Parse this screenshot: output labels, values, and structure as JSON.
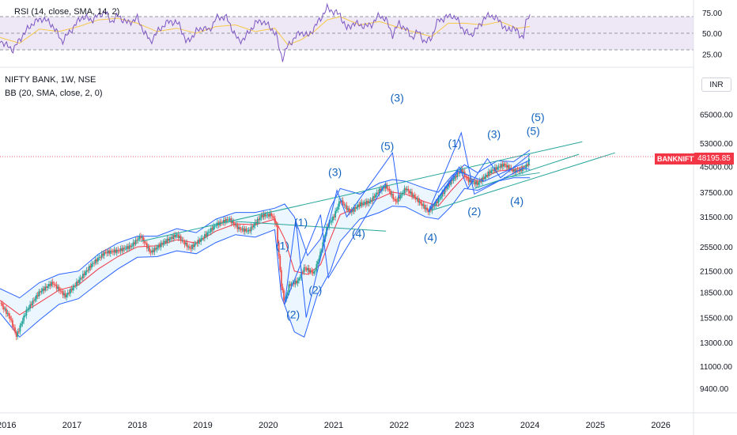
{
  "rsi_panel": {
    "label": "RSI (14, close, SMA, 14, 2)",
    "ticks": [
      {
        "value": 75,
        "label": "75.00"
      },
      {
        "value": 50,
        "label": "50.00"
      },
      {
        "value": 25,
        "label": "25.00"
      }
    ],
    "upper_band": 70,
    "lower_band": 30
  },
  "main_panel": {
    "symbol_label": "NIFTY BANK, 1W, NSE",
    "indicator_label": "BB (20, SMA, close, 2, 0)",
    "currency": "INR",
    "symbol_tag": "BANKNIFTY",
    "price_tag": "48195.85",
    "last_price": 48195.85
  },
  "colors": {
    "rsi_line": "#7e57c2",
    "rsi_ma": "#f7c948",
    "rsi_band_fill": "#ede7f6",
    "bb_band": "#2962ff",
    "bb_fill": "#e3f2fd",
    "bb_basis": "#f23645",
    "wave_line": "#2962ff",
    "channel_line": "#26a69a",
    "wave_label": "#1565c0",
    "candle_up": "#26a69a",
    "candle_down": "#ef5350",
    "price_tag": "#f23645"
  },
  "chart_data": {
    "type": "candlestick",
    "time_axis": {
      "labels": [
        "2016",
        "2017",
        "2018",
        "2019",
        "2020",
        "2021",
        "2022",
        "2023",
        "2024",
        "2025",
        "2026"
      ],
      "range": [
        2015.9,
        2026.5
      ]
    },
    "price_axis": {
      "scale": "log",
      "range": [
        8000,
        90000
      ],
      "ticks": [
        {
          "value": 65000,
          "label": "65000.00"
        },
        {
          "value": 53000,
          "label": "53000.00"
        },
        {
          "value": 45000,
          "label": "45000.00"
        },
        {
          "value": 37500,
          "label": "37500.00"
        },
        {
          "value": 31500,
          "label": "31500.00"
        },
        {
          "value": 25500,
          "label": "25500.00"
        },
        {
          "value": 21500,
          "label": "21500.00"
        },
        {
          "value": 18500,
          "label": "18500.00"
        },
        {
          "value": 15500,
          "label": "15500.00"
        },
        {
          "value": 13000,
          "label": "13000.00"
        },
        {
          "value": 11000,
          "label": "11000.00"
        },
        {
          "value": 9400,
          "label": "9400.00"
        }
      ]
    },
    "price_path": [
      [
        2015.9,
        17200
      ],
      [
        2016.05,
        15500
      ],
      [
        2016.15,
        13600
      ],
      [
        2016.3,
        16200
      ],
      [
        2016.5,
        18500
      ],
      [
        2016.7,
        19800
      ],
      [
        2016.9,
        18000
      ],
      [
        2017.05,
        19500
      ],
      [
        2017.3,
        22500
      ],
      [
        2017.5,
        24500
      ],
      [
        2017.7,
        24800
      ],
      [
        2017.9,
        25600
      ],
      [
        2018.05,
        27500
      ],
      [
        2018.2,
        24500
      ],
      [
        2018.4,
        26300
      ],
      [
        2018.6,
        27800
      ],
      [
        2018.8,
        25200
      ],
      [
        2019.0,
        27200
      ],
      [
        2019.2,
        29800
      ],
      [
        2019.4,
        31000
      ],
      [
        2019.55,
        29000
      ],
      [
        2019.7,
        28500
      ],
      [
        2019.9,
        31800
      ],
      [
        2020.05,
        32000
      ],
      [
        2020.12,
        30000
      ],
      [
        2020.2,
        19500
      ],
      [
        2020.25,
        17200
      ],
      [
        2020.32,
        19500
      ],
      [
        2020.45,
        20000
      ],
      [
        2020.55,
        22000
      ],
      [
        2020.7,
        21200
      ],
      [
        2020.8,
        24500
      ],
      [
        2020.9,
        29500
      ],
      [
        2021.0,
        31500
      ],
      [
        2021.1,
        35500
      ],
      [
        2021.25,
        32500
      ],
      [
        2021.4,
        34500
      ],
      [
        2021.55,
        35000
      ],
      [
        2021.7,
        38000
      ],
      [
        2021.8,
        39200
      ],
      [
        2021.95,
        35000
      ],
      [
        2022.1,
        38500
      ],
      [
        2022.25,
        36000
      ],
      [
        2022.45,
        32700
      ],
      [
        2022.6,
        35500
      ],
      [
        2022.75,
        39500
      ],
      [
        2022.95,
        44000
      ],
      [
        2023.05,
        40800
      ],
      [
        2023.2,
        39800
      ],
      [
        2023.4,
        43500
      ],
      [
        2023.6,
        45600
      ],
      [
        2023.75,
        43500
      ],
      [
        2023.85,
        43800
      ],
      [
        2023.95,
        45200
      ],
      [
        2024.0,
        48195.85
      ]
    ],
    "bollinger": {
      "upper": [
        [
          2015.9,
          19000
        ],
        [
          2016.2,
          17800
        ],
        [
          2016.5,
          19800
        ],
        [
          2016.8,
          21000
        ],
        [
          2017.1,
          21500
        ],
        [
          2017.4,
          24200
        ],
        [
          2017.7,
          26200
        ],
        [
          2018.0,
          27500
        ],
        [
          2018.3,
          27500
        ],
        [
          2018.6,
          29000
        ],
        [
          2018.9,
          28200
        ],
        [
          2019.2,
          31000
        ],
        [
          2019.5,
          32500
        ],
        [
          2019.8,
          32500
        ],
        [
          2020.1,
          33500
        ],
        [
          2020.25,
          34500
        ],
        [
          2020.4,
          31500
        ],
        [
          2020.6,
          24000
        ],
        [
          2020.8,
          27000
        ],
        [
          2020.95,
          33500
        ],
        [
          2021.1,
          38500
        ],
        [
          2021.4,
          37000
        ],
        [
          2021.7,
          40000
        ],
        [
          2021.9,
          41000
        ],
        [
          2022.1,
          40500
        ],
        [
          2022.4,
          38500
        ],
        [
          2022.6,
          37500
        ],
        [
          2022.8,
          42000
        ],
        [
          2023.0,
          45500
        ],
        [
          2023.2,
          43000
        ],
        [
          2023.5,
          46800
        ],
        [
          2023.75,
          46500
        ],
        [
          2024.0,
          50500
        ]
      ],
      "basis": [
        [
          2015.9,
          17500
        ],
        [
          2016.2,
          15800
        ],
        [
          2016.5,
          17200
        ],
        [
          2016.8,
          18800
        ],
        [
          2017.1,
          19500
        ],
        [
          2017.4,
          21800
        ],
        [
          2017.7,
          23800
        ],
        [
          2018.0,
          25500
        ],
        [
          2018.3,
          25700
        ],
        [
          2018.6,
          26800
        ],
        [
          2018.9,
          26200
        ],
        [
          2019.2,
          28500
        ],
        [
          2019.5,
          30000
        ],
        [
          2019.8,
          29800
        ],
        [
          2020.1,
          31000
        ],
        [
          2020.25,
          27000
        ],
        [
          2020.4,
          21500
        ],
        [
          2020.6,
          21000
        ],
        [
          2020.8,
          22500
        ],
        [
          2020.95,
          27000
        ],
        [
          2021.1,
          32000
        ],
        [
          2021.4,
          34000
        ],
        [
          2021.7,
          36000
        ],
        [
          2021.9,
          37500
        ],
        [
          2022.1,
          37000
        ],
        [
          2022.4,
          35000
        ],
        [
          2022.6,
          34000
        ],
        [
          2022.8,
          38000
        ],
        [
          2023.0,
          42000
        ],
        [
          2023.2,
          40500
        ],
        [
          2023.5,
          43500
        ],
        [
          2023.75,
          44000
        ],
        [
          2024.0,
          45500
        ]
      ],
      "lower": [
        [
          2015.9,
          16000
        ],
        [
          2016.2,
          13500
        ],
        [
          2016.5,
          15200
        ],
        [
          2016.8,
          17000
        ],
        [
          2017.1,
          17700
        ],
        [
          2017.4,
          19700
        ],
        [
          2017.7,
          21800
        ],
        [
          2018.0,
          23700
        ],
        [
          2018.3,
          23800
        ],
        [
          2018.6,
          24800
        ],
        [
          2018.9,
          24300
        ],
        [
          2019.2,
          26300
        ],
        [
          2019.5,
          27800
        ],
        [
          2019.8,
          27300
        ],
        [
          2020.1,
          28800
        ],
        [
          2020.2,
          18000
        ],
        [
          2020.4,
          14000
        ],
        [
          2020.55,
          13500
        ],
        [
          2020.75,
          18200
        ],
        [
          2020.95,
          21500
        ],
        [
          2021.1,
          26500
        ],
        [
          2021.4,
          31000
        ],
        [
          2021.7,
          32500
        ],
        [
          2021.9,
          34000
        ],
        [
          2022.1,
          33800
        ],
        [
          2022.4,
          31500
        ],
        [
          2022.6,
          31000
        ],
        [
          2022.8,
          34000
        ],
        [
          2023.0,
          38500
        ],
        [
          2023.2,
          38000
        ],
        [
          2023.5,
          40500
        ],
        [
          2023.75,
          41500
        ],
        [
          2024.0,
          41500
        ]
      ]
    },
    "rsi": [
      [
        2015.9,
        42
      ],
      [
        2016.0,
        35
      ],
      [
        2016.1,
        30
      ],
      [
        2016.25,
        48
      ],
      [
        2016.4,
        62
      ],
      [
        2016.55,
        68
      ],
      [
        2016.7,
        60
      ],
      [
        2016.85,
        40
      ],
      [
        2017.0,
        55
      ],
      [
        2017.15,
        70
      ],
      [
        2017.3,
        66
      ],
      [
        2017.5,
        76
      ],
      [
        2017.6,
        64
      ],
      [
        2017.7,
        71
      ],
      [
        2017.85,
        62
      ],
      [
        2018.0,
        68
      ],
      [
        2018.1,
        52
      ],
      [
        2018.2,
        40
      ],
      [
        2018.35,
        56
      ],
      [
        2018.5,
        65
      ],
      [
        2018.65,
        60
      ],
      [
        2018.75,
        38
      ],
      [
        2018.9,
        52
      ],
      [
        2019.0,
        57
      ],
      [
        2019.1,
        53
      ],
      [
        2019.2,
        68
      ],
      [
        2019.35,
        70
      ],
      [
        2019.45,
        55
      ],
      [
        2019.55,
        40
      ],
      [
        2019.65,
        45
      ],
      [
        2019.8,
        62
      ],
      [
        2019.9,
        65
      ],
      [
        2020.05,
        56
      ],
      [
        2020.12,
        48
      ],
      [
        2020.18,
        28
      ],
      [
        2020.22,
        20
      ],
      [
        2020.3,
        35
      ],
      [
        2020.4,
        44
      ],
      [
        2020.5,
        52
      ],
      [
        2020.6,
        46
      ],
      [
        2020.7,
        56
      ],
      [
        2020.8,
        68
      ],
      [
        2020.9,
        80
      ],
      [
        2021.0,
        76
      ],
      [
        2021.1,
        72
      ],
      [
        2021.2,
        55
      ],
      [
        2021.3,
        62
      ],
      [
        2021.4,
        60
      ],
      [
        2021.5,
        58
      ],
      [
        2021.6,
        62
      ],
      [
        2021.7,
        72
      ],
      [
        2021.8,
        66
      ],
      [
        2021.9,
        48
      ],
      [
        2022.0,
        62
      ],
      [
        2022.1,
        55
      ],
      [
        2022.2,
        45
      ],
      [
        2022.3,
        52
      ],
      [
        2022.4,
        38
      ],
      [
        2022.5,
        46
      ],
      [
        2022.6,
        66
      ],
      [
        2022.7,
        68
      ],
      [
        2022.8,
        72
      ],
      [
        2022.9,
        65
      ],
      [
        2023.0,
        52
      ],
      [
        2023.1,
        48
      ],
      [
        2023.2,
        56
      ],
      [
        2023.3,
        68
      ],
      [
        2023.4,
        72
      ],
      [
        2023.55,
        64
      ],
      [
        2023.65,
        52
      ],
      [
        2023.75,
        58
      ],
      [
        2023.85,
        46
      ],
      [
        2023.9,
        48
      ],
      [
        2023.95,
        66
      ],
      [
        2024.0,
        70
      ]
    ],
    "rsi_ma": [
      [
        2015.9,
        45
      ],
      [
        2016.2,
        38
      ],
      [
        2016.5,
        55
      ],
      [
        2016.8,
        52
      ],
      [
        2017.1,
        58
      ],
      [
        2017.4,
        66
      ],
      [
        2017.7,
        68
      ],
      [
        2018.0,
        62
      ],
      [
        2018.3,
        52
      ],
      [
        2018.6,
        56
      ],
      [
        2018.9,
        50
      ],
      [
        2019.2,
        58
      ],
      [
        2019.5,
        60
      ],
      [
        2019.8,
        52
      ],
      [
        2020.1,
        56
      ],
      [
        2020.3,
        36
      ],
      [
        2020.5,
        42
      ],
      [
        2020.7,
        52
      ],
      [
        2020.9,
        66
      ],
      [
        2021.1,
        70
      ],
      [
        2021.4,
        60
      ],
      [
        2021.7,
        64
      ],
      [
        2021.95,
        58
      ],
      [
        2022.2,
        52
      ],
      [
        2022.5,
        46
      ],
      [
        2022.75,
        62
      ],
      [
        2023.0,
        62
      ],
      [
        2023.3,
        60
      ],
      [
        2023.55,
        64
      ],
      [
        2023.8,
        56
      ],
      [
        2024.0,
        58
      ]
    ],
    "wave_lines": [
      [
        [
          2020.25,
          17000
        ],
        [
          2020.42,
          31000
        ],
        [
          2020.58,
          15500
        ],
        [
          2021.05,
          38000
        ],
        [
          2021.2,
          31500
        ],
        [
          2021.9,
          49500
        ],
        [
          2022.0,
          36000
        ]
      ],
      [
        [
          2020.25,
          17000
        ],
        [
          2020.8,
          32000
        ],
        [
          2020.92,
          20500
        ],
        [
          2021.8,
          40000
        ]
      ],
      [
        [
          2022.45,
          32700
        ],
        [
          2022.92,
          44800
        ],
        [
          2023.05,
          38500
        ],
        [
          2023.35,
          47500
        ],
        [
          2023.55,
          41500
        ],
        [
          2024.0,
          49000
        ]
      ],
      [
        [
          2022.45,
          32700
        ],
        [
          2022.9,
          43500
        ],
        [
          2023.3,
          40500
        ],
        [
          2024.0,
          47000
        ]
      ],
      [
        [
          2022.45,
          32700
        ],
        [
          2022.95,
          57000
        ],
        [
          2023.15,
          37000
        ],
        [
          2023.9,
          44500
        ],
        [
          2024.0,
          44000
        ]
      ]
    ],
    "channel_lines": [
      [
        [
          2018.05,
          26500
        ],
        [
          2024.8,
          53500
        ]
      ],
      [
        [
          2019.5,
          30500
        ],
        [
          2021.8,
          28500
        ]
      ],
      [
        [
          2022.5,
          33000
        ],
        [
          2025.3,
          49500
        ]
      ],
      [
        [
          2023.15,
          38500
        ],
        [
          2024.75,
          49000
        ]
      ],
      [
        [
          2023.6,
          41500
        ],
        [
          2024.15,
          43000
        ]
      ]
    ],
    "wave_labels": [
      {
        "text": "(1)",
        "x": 2020.5,
        "y": 29500
      },
      {
        "text": "(1)",
        "x": 2020.22,
        "y": 25000
      },
      {
        "text": "(2)",
        "x": 2020.72,
        "y": 18300
      },
      {
        "text": "(2)",
        "x": 2020.38,
        "y": 15400
      },
      {
        "text": "(3)",
        "x": 2021.02,
        "y": 42000
      },
      {
        "text": "(3)",
        "x": 2021.97,
        "y": 71000
      },
      {
        "text": "(4)",
        "x": 2021.38,
        "y": 27300
      },
      {
        "text": "(5)",
        "x": 2021.82,
        "y": 50500
      },
      {
        "text": "(4)",
        "x": 2022.48,
        "y": 26500
      },
      {
        "text": "(1)",
        "x": 2022.85,
        "y": 51500
      },
      {
        "text": "(2)",
        "x": 2023.15,
        "y": 31900
      },
      {
        "text": "(3)",
        "x": 2023.45,
        "y": 55000
      },
      {
        "text": "(4)",
        "x": 2023.8,
        "y": 34300
      },
      {
        "text": "(5)",
        "x": 2024.05,
        "y": 56200
      },
      {
        "text": "(5)",
        "x": 2024.12,
        "y": 62000
      }
    ]
  }
}
